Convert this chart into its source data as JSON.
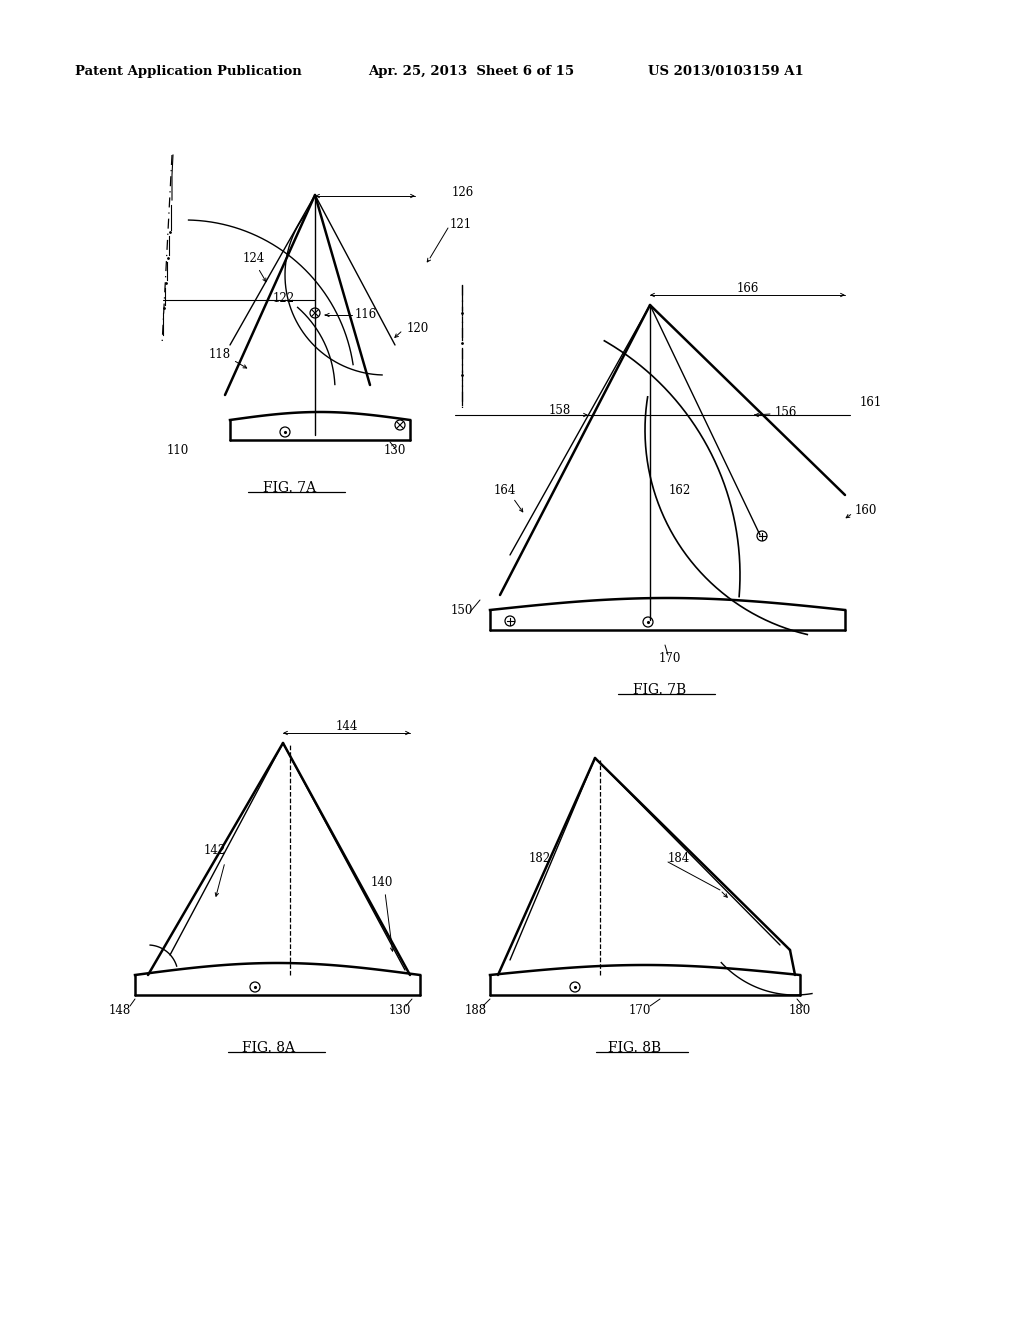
{
  "bg_color": "#ffffff",
  "header_text": "Patent Application Publication",
  "header_date": "Apr. 25, 2013  Sheet 6 of 15",
  "header_number": "US 2013/0103159 A1",
  "fig7a_label": "FIG. 7A",
  "fig7b_label": "FIG. 7B",
  "fig8a_label": "FIG. 8A",
  "fig8b_label": "FIG. 8B"
}
